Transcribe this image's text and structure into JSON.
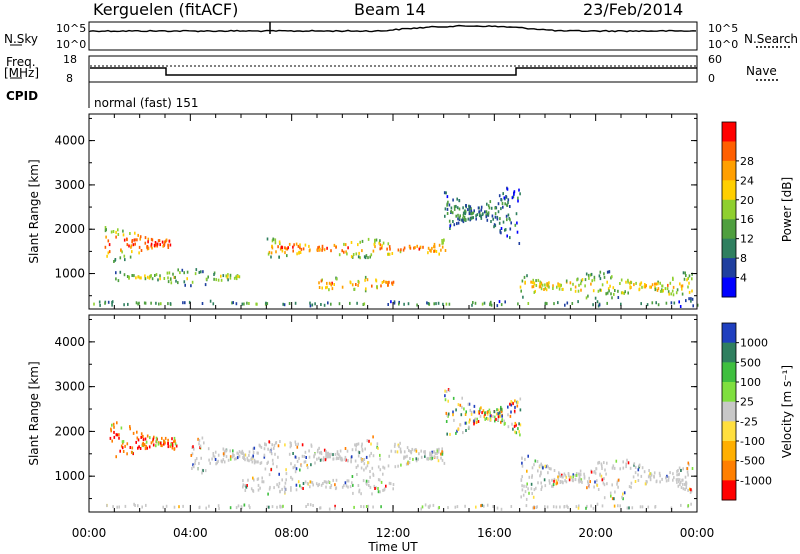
{
  "header": {
    "station": "Kerguelen (fitACF)",
    "beam": "Beam 14",
    "date": "23/Feb/2014"
  },
  "panels": {
    "nsky": {
      "left_label": "N.Sky",
      "left_ticks": [
        "10^5",
        "10^0"
      ],
      "right_label": "N.Search",
      "right_ticks": [
        "10^5",
        "10^0"
      ]
    },
    "freq": {
      "left_label_1": "Freq.",
      "left_label_2": "[MHz]",
      "left_ticks": [
        "18",
        "8"
      ],
      "right_label": "Nave",
      "right_ticks": [
        "60",
        "0"
      ]
    },
    "cpid": {
      "label": "CPID",
      "value": "normal (fast) 151"
    }
  },
  "colors": {
    "power_scale": [
      "#0000ff",
      "#1f3f9f",
      "#2f7f5f",
      "#4f9f3f",
      "#8fcf2f",
      "#ffcf00",
      "#ff9f00",
      "#ff5f00",
      "#ff0000"
    ],
    "velocity_scale": [
      "#1f3fbf",
      "#2f7f5f",
      "#3fbf3f",
      "#7fdf3f",
      "#c8c8c8",
      "#ffdf3f",
      "#ffaf00",
      "#ff7f00",
      "#ff0000"
    ],
    "ground_scatter": "#c8c8c8"
  },
  "chart_data": [
    {
      "type": "heatmap",
      "title": "Power",
      "ylabel": "Slant Range [km]",
      "xlabel": "Time UT",
      "x_ticks": [
        "00:00",
        "04:00",
        "08:00",
        "12:00",
        "16:00",
        "20:00",
        "00:00"
      ],
      "y_ticks": [
        "1000",
        "2000",
        "3000",
        "4000"
      ],
      "ylim": [
        200,
        4600
      ],
      "xlim_hours": [
        0,
        24
      ],
      "colorbar_label": "Power [dB]",
      "colorbar_ticks": [
        "4",
        "8",
        "12",
        "16",
        "20",
        "24",
        "28"
      ],
      "features": [
        {
          "t0": 0.5,
          "t1": 3.2,
          "r_center": 1700,
          "r_width": 400,
          "intensity": 0.8
        },
        {
          "t0": 1.0,
          "t1": 6.0,
          "r_center": 950,
          "r_width": 200,
          "intensity": 0.45
        },
        {
          "t0": 7.0,
          "t1": 14.2,
          "r_center": 1600,
          "r_width": 250,
          "intensity": 0.7
        },
        {
          "t0": 9.0,
          "t1": 12.0,
          "r_center": 800,
          "r_width": 200,
          "intensity": 0.7
        },
        {
          "t0": 14.0,
          "t1": 17.0,
          "r_center": 2400,
          "r_width": 700,
          "intensity": 0.25
        },
        {
          "t0": 17.0,
          "t1": 23.8,
          "r_center": 750,
          "r_width": 350,
          "intensity": 0.55
        },
        {
          "t0": 0.0,
          "t1": 24.0,
          "r_center": 350,
          "r_width": 60,
          "intensity": 0.3
        }
      ]
    },
    {
      "type": "heatmap",
      "title": "Velocity",
      "ylabel": "Slant Range [km]",
      "xlabel": "Time UT",
      "x_ticks": [
        "00:00",
        "04:00",
        "08:00",
        "12:00",
        "16:00",
        "20:00",
        "00:00"
      ],
      "y_ticks": [
        "1000",
        "2000",
        "3000",
        "4000"
      ],
      "ylim": [
        200,
        4600
      ],
      "xlim_hours": [
        0,
        24
      ],
      "colorbar_label": "Velocity [m s⁻¹]",
      "colorbar_ticks": [
        "1000",
        "500",
        "100",
        "25",
        "-25",
        "-100",
        "-500",
        "-1000"
      ],
      "features": [
        {
          "t0": 0.8,
          "t1": 3.5,
          "r_center": 1800,
          "r_width": 450,
          "kind": "orange"
        },
        {
          "t0": 4.0,
          "t1": 14.0,
          "r_center": 1500,
          "r_width": 450,
          "kind": "gray"
        },
        {
          "t0": 6.0,
          "t1": 12.0,
          "r_center": 850,
          "r_width": 250,
          "kind": "gray"
        },
        {
          "t0": 14.0,
          "t1": 17.0,
          "r_center": 2400,
          "r_width": 600,
          "kind": "mixed"
        },
        {
          "t0": 17.0,
          "t1": 23.8,
          "r_center": 1000,
          "r_width": 500,
          "kind": "gray"
        },
        {
          "t0": 0.0,
          "t1": 24.0,
          "r_center": 350,
          "r_width": 60,
          "kind": "gray"
        }
      ]
    }
  ]
}
